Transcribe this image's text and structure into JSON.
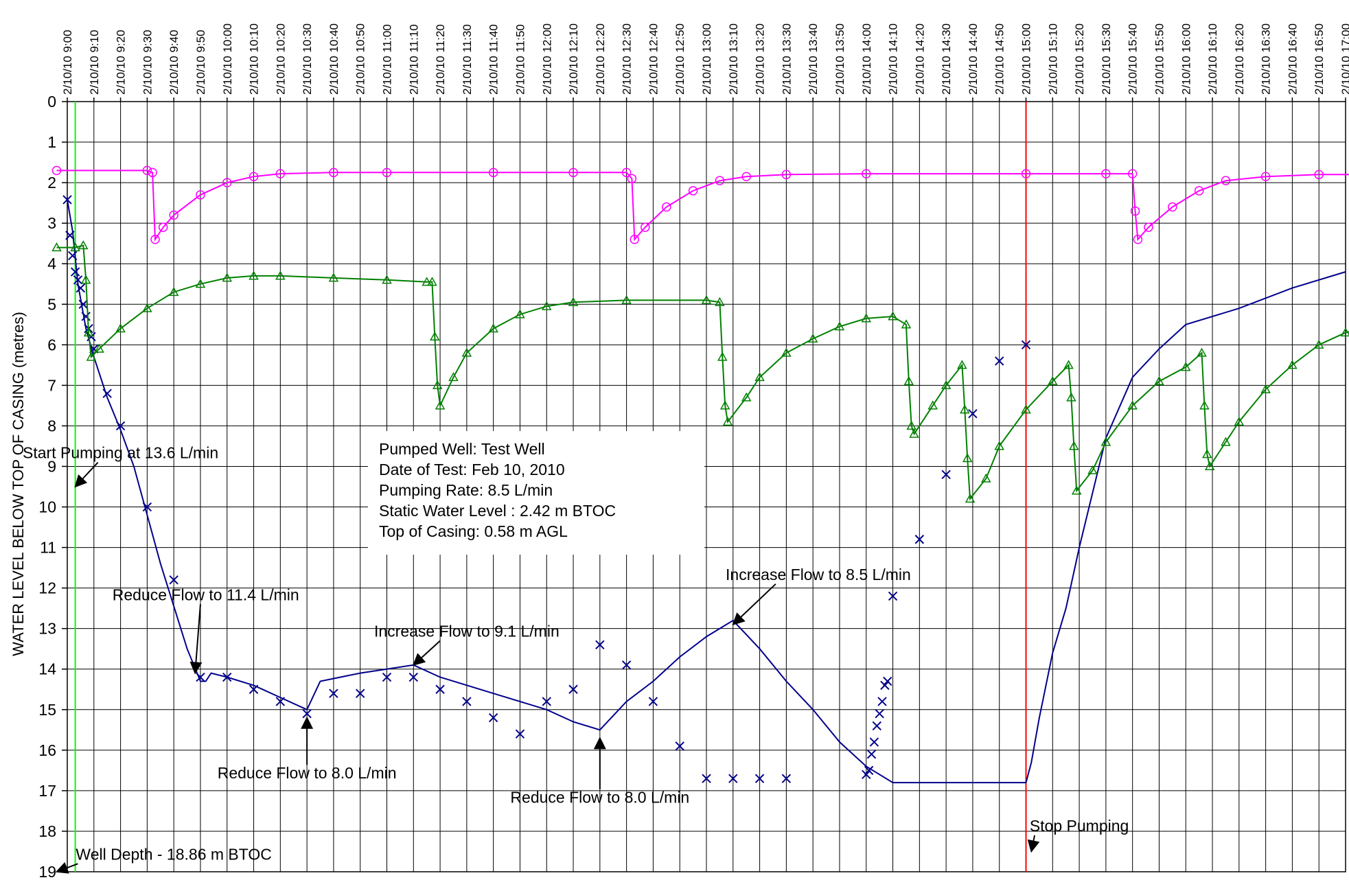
{
  "chart_data": {
    "type": "line",
    "title": "",
    "ylabel": "WATER LEVEL BELOW TOP OF CASING (metres)",
    "xlabel": "",
    "ylim": [
      0,
      19
    ],
    "y_inverted": true,
    "yticks": [
      "0",
      "1",
      "2",
      "3",
      "4",
      "5",
      "6",
      "7",
      "8",
      "9",
      "10",
      "11",
      "12",
      "13",
      "14",
      "15",
      "16",
      "17",
      "18",
      "19"
    ],
    "xlim": [
      "2/10/10 9:00",
      "2/10/10 17:00"
    ],
    "xticks": [
      "2/10/10 9:00",
      "2/10/10 9:10",
      "2/10/10 9:20",
      "2/10/10 9:30",
      "2/10/10 9:40",
      "2/10/10 9:50",
      "2/10/10 10:00",
      "2/10/10 10:10",
      "2/10/10 10:20",
      "2/10/10 10:30",
      "2/10/10 10:40",
      "2/10/10 10:50",
      "2/10/10 11:00",
      "2/10/10 11:10",
      "2/10/10 11:20",
      "2/10/10 11:30",
      "2/10/10 11:40",
      "2/10/10 11:50",
      "2/10/10 12:00",
      "2/10/10 12:10",
      "2/10/10 12:20",
      "2/10/10 12:30",
      "2/10/10 12:40",
      "2/10/10 12:50",
      "2/10/10 13:00",
      "2/10/10 13:10",
      "2/10/10 13:20",
      "2/10/10 13:30",
      "2/10/10 13:40",
      "2/10/10 13:50",
      "2/10/10 14:00",
      "2/10/10 14:10",
      "2/10/10 14:20",
      "2/10/10 14:30",
      "2/10/10 14:40",
      "2/10/10 14:50",
      "2/10/10 15:00",
      "2/10/10 15:10",
      "2/10/10 15:20",
      "2/10/10 15:30",
      "2/10/10 15:40",
      "2/10/10 15:50",
      "2/10/10 16:00",
      "2/10/10 16:10",
      "2/10/10 16:20",
      "2/10/10 16:30",
      "2/10/10 16:40",
      "2/10/10 16:50",
      "2/10/10 17:00"
    ],
    "grid": true,
    "legend": "none",
    "series": [
      {
        "color": "#00008B",
        "style": "line",
        "points": [
          [
            "2/10/10 9:00",
            "2.42"
          ],
          [
            "2/10/10 9:02",
            "3.2"
          ],
          [
            "2/10/10 9:04",
            "4.5"
          ],
          [
            "2/10/10 9:07",
            "5.6"
          ],
          [
            "2/10/10 9:10",
            "6.3"
          ],
          [
            "2/10/10 9:15",
            "7.3"
          ],
          [
            "2/10/10 9:20",
            "8.1"
          ],
          [
            "2/10/10 9:25",
            "9"
          ],
          [
            "2/10/10 9:35",
            "11.4"
          ],
          [
            "2/10/10 9:45",
            "13.5"
          ],
          [
            "2/10/10 9:50",
            "14.3"
          ],
          [
            "2/10/10 9:52",
            "14.3"
          ],
          [
            "2/10/10 9:54",
            "14.1"
          ],
          [
            "2/10/10 10:00",
            "14.2"
          ],
          [
            "2/10/10 10:10",
            "14.4"
          ],
          [
            "2/10/10 10:20",
            "14.7"
          ],
          [
            "2/10/10 10:30",
            "15"
          ],
          [
            "2/10/10 10:35",
            "14.3"
          ],
          [
            "2/10/10 10:50",
            "14.1"
          ],
          [
            "2/10/10 11:00",
            "14"
          ],
          [
            "2/10/10 11:10",
            "13.9"
          ],
          [
            "2/10/10 11:20",
            "14.2"
          ],
          [
            "2/10/10 11:40",
            "14.6"
          ],
          [
            "2/10/10 12:00",
            "15"
          ],
          [
            "2/10/10 12:10",
            "15.3"
          ],
          [
            "2/10/10 12:20",
            "15.5"
          ],
          [
            "2/10/10 12:30",
            "14.8"
          ],
          [
            "2/10/10 12:40",
            "14.3"
          ],
          [
            "2/10/10 12:50",
            "13.7"
          ],
          [
            "2/10/10 13:00",
            "13.2"
          ],
          [
            "2/10/10 13:10",
            "12.8"
          ],
          [
            "2/10/10 13:20",
            "13.5"
          ],
          [
            "2/10/10 13:30",
            "14.3"
          ],
          [
            "2/10/10 13:40",
            "15"
          ],
          [
            "2/10/10 13:50",
            "15.8"
          ],
          [
            "2/10/10 14:00",
            "16.4"
          ],
          [
            "2/10/10 14:10",
            "16.8"
          ],
          [
            "2/10/10 14:20",
            "16.8"
          ],
          [
            "2/10/10 15:00",
            "16.8"
          ],
          [
            "2/10/10 15:02",
            "16.3"
          ],
          [
            "2/10/10 15:05",
            "15.2"
          ],
          [
            "2/10/10 15:10",
            "13.6"
          ],
          [
            "2/10/10 15:15",
            "12.5"
          ],
          [
            "2/10/10 15:20",
            "11"
          ],
          [
            "2/10/10 15:30",
            "8.3"
          ],
          [
            "2/10/10 15:40",
            "6.8"
          ],
          [
            "2/10/10 15:50",
            "6.1"
          ],
          [
            "2/10/10 16:00",
            "5.5"
          ],
          [
            "2/10/10 16:20",
            "5.1"
          ],
          [
            "2/10/10 16:40",
            "4.6"
          ],
          [
            "2/10/10 17:00",
            "4.2"
          ]
        ]
      },
      {
        "color": "#00008B",
        "style": "markers",
        "marker": "x",
        "points": [
          [
            "2/10/10 9:00",
            "2.42"
          ],
          [
            "2/10/10 9:01",
            "3.3"
          ],
          [
            "2/10/10 9:02",
            "3.8"
          ],
          [
            "2/10/10 9:03",
            "4.2"
          ],
          [
            "2/10/10 9:04",
            "4.4"
          ],
          [
            "2/10/10 9:05",
            "4.6"
          ],
          [
            "2/10/10 9:06",
            "5"
          ],
          [
            "2/10/10 9:07",
            "5.3"
          ],
          [
            "2/10/10 9:08",
            "5.6"
          ],
          [
            "2/10/10 9:09",
            "5.8"
          ],
          [
            "2/10/10 9:10",
            "6.1"
          ],
          [
            "2/10/10 9:15",
            "7.2"
          ],
          [
            "2/10/10 9:20",
            "8"
          ],
          [
            "2/10/10 9:30",
            "10"
          ],
          [
            "2/10/10 9:40",
            "11.8"
          ],
          [
            "2/10/10 9:50",
            "14.2"
          ],
          [
            "2/10/10 10:00",
            "14.2"
          ],
          [
            "2/10/10 10:10",
            "14.5"
          ],
          [
            "2/10/10 10:20",
            "14.8"
          ],
          [
            "2/10/10 10:30",
            "15.1"
          ],
          [
            "2/10/10 10:40",
            "14.6"
          ],
          [
            "2/10/10 10:50",
            "14.6"
          ],
          [
            "2/10/10 11:00",
            "14.2"
          ],
          [
            "2/10/10 11:10",
            "14.2"
          ],
          [
            "2/10/10 11:20",
            "14.5"
          ],
          [
            "2/10/10 11:30",
            "14.8"
          ],
          [
            "2/10/10 11:40",
            "15.2"
          ],
          [
            "2/10/10 11:50",
            "15.6"
          ],
          [
            "2/10/10 12:00",
            "14.8"
          ],
          [
            "2/10/10 12:10",
            "14.5"
          ],
          [
            "2/10/10 12:20",
            "13.4"
          ],
          [
            "2/10/10 12:30",
            "13.9"
          ],
          [
            "2/10/10 12:40",
            "14.8"
          ],
          [
            "2/10/10 12:50",
            "15.9"
          ],
          [
            "2/10/10 13:00",
            "16.7"
          ],
          [
            "2/10/10 13:10",
            "16.7"
          ],
          [
            "2/10/10 13:20",
            "16.7"
          ],
          [
            "2/10/10 13:30",
            "16.7"
          ],
          [
            "2/10/10 14:00",
            "16.6"
          ],
          [
            "2/10/10 14:01",
            "16.5"
          ],
          [
            "2/10/10 14:02",
            "16.1"
          ],
          [
            "2/10/10 14:03",
            "15.8"
          ],
          [
            "2/10/10 14:04",
            "15.4"
          ],
          [
            "2/10/10 14:05",
            "15.1"
          ],
          [
            "2/10/10 14:06",
            "14.8"
          ],
          [
            "2/10/10 14:07",
            "14.4"
          ],
          [
            "2/10/10 14:08",
            "14.3"
          ],
          [
            "2/10/10 14:10",
            "12.2"
          ],
          [
            "2/10/10 14:20",
            "10.8"
          ],
          [
            "2/10/10 14:30",
            "9.2"
          ],
          [
            "2/10/10 14:40",
            "7.7"
          ],
          [
            "2/10/10 14:50",
            "6.4"
          ],
          [
            "2/10/10 15:00",
            "6"
          ]
        ]
      },
      {
        "color": "#008000",
        "style": "line+markers",
        "marker": "triangle",
        "points": [
          [
            "2/10/10 8:56",
            "3.6"
          ],
          [
            "2/10/10 9:03",
            "3.6"
          ],
          [
            "2/10/10 9:06",
            "3.55"
          ],
          [
            "2/10/10 9:07",
            "4.4"
          ],
          [
            "2/10/10 9:08",
            "5.7"
          ],
          [
            "2/10/10 9:09",
            "6.3"
          ],
          [
            "2/10/10 9:12",
            "6.1"
          ],
          [
            "2/10/10 9:20",
            "5.6"
          ],
          [
            "2/10/10 9:30",
            "5.1"
          ],
          [
            "2/10/10 9:40",
            "4.7"
          ],
          [
            "2/10/10 9:50",
            "4.5"
          ],
          [
            "2/10/10 10:00",
            "4.35"
          ],
          [
            "2/10/10 10:10",
            "4.3"
          ],
          [
            "2/10/10 10:20",
            "4.3"
          ],
          [
            "2/10/10 10:40",
            "4.35"
          ],
          [
            "2/10/10 11:00",
            "4.4"
          ],
          [
            "2/10/10 11:15",
            "4.45"
          ],
          [
            "2/10/10 11:17",
            "4.45"
          ],
          [
            "2/10/10 11:18",
            "5.8"
          ],
          [
            "2/10/10 11:19",
            "7"
          ],
          [
            "2/10/10 11:20",
            "7.5"
          ],
          [
            "2/10/10 11:25",
            "6.8"
          ],
          [
            "2/10/10 11:30",
            "6.2"
          ],
          [
            "2/10/10 11:40",
            "5.6"
          ],
          [
            "2/10/10 11:50",
            "5.25"
          ],
          [
            "2/10/10 12:00",
            "5.05"
          ],
          [
            "2/10/10 12:10",
            "4.95"
          ],
          [
            "2/10/10 12:30",
            "4.9"
          ],
          [
            "2/10/10 13:00",
            "4.9"
          ],
          [
            "2/10/10 13:05",
            "4.95"
          ],
          [
            "2/10/10 13:06",
            "6.3"
          ],
          [
            "2/10/10 13:07",
            "7.5"
          ],
          [
            "2/10/10 13:08",
            "7.9"
          ],
          [
            "2/10/10 13:15",
            "7.3"
          ],
          [
            "2/10/10 13:20",
            "6.8"
          ],
          [
            "2/10/10 13:30",
            "6.2"
          ],
          [
            "2/10/10 13:40",
            "5.85"
          ],
          [
            "2/10/10 13:50",
            "5.55"
          ],
          [
            "2/10/10 14:00",
            "5.35"
          ],
          [
            "2/10/10 14:10",
            "5.3"
          ],
          [
            "2/10/10 14:15",
            "5.5"
          ],
          [
            "2/10/10 14:16",
            "6.9"
          ],
          [
            "2/10/10 14:17",
            "8"
          ],
          [
            "2/10/10 14:18",
            "8.2"
          ],
          [
            "2/10/10 14:25",
            "7.5"
          ],
          [
            "2/10/10 14:30",
            "7"
          ],
          [
            "2/10/10 14:36",
            "6.5"
          ],
          [
            "2/10/10 14:37",
            "7.6"
          ],
          [
            "2/10/10 14:38",
            "8.8"
          ],
          [
            "2/10/10 14:39",
            "9.8"
          ],
          [
            "2/10/10 14:45",
            "9.3"
          ],
          [
            "2/10/10 14:50",
            "8.5"
          ],
          [
            "2/10/10 15:00",
            "7.6"
          ],
          [
            "2/10/10 15:10",
            "6.9"
          ],
          [
            "2/10/10 15:16",
            "6.5"
          ],
          [
            "2/10/10 15:17",
            "7.3"
          ],
          [
            "2/10/10 15:18",
            "8.5"
          ],
          [
            "2/10/10 15:19",
            "9.6"
          ],
          [
            "2/10/10 15:25",
            "9.1"
          ],
          [
            "2/10/10 15:30",
            "8.4"
          ],
          [
            "2/10/10 15:40",
            "7.5"
          ],
          [
            "2/10/10 15:50",
            "6.9"
          ],
          [
            "2/10/10 16:00",
            "6.55"
          ],
          [
            "2/10/10 16:06",
            "6.2"
          ],
          [
            "2/10/10 16:07",
            "7.5"
          ],
          [
            "2/10/10 16:08",
            "8.7"
          ],
          [
            "2/10/10 16:09",
            "9"
          ],
          [
            "2/10/10 16:15",
            "8.4"
          ],
          [
            "2/10/10 16:20",
            "7.9"
          ],
          [
            "2/10/10 16:30",
            "7.1"
          ],
          [
            "2/10/10 16:40",
            "6.5"
          ],
          [
            "2/10/10 16:50",
            "6"
          ],
          [
            "2/10/10 17:00",
            "5.7"
          ],
          [
            "2/10/10 17:03",
            "5.65"
          ]
        ]
      },
      {
        "color": "#FF00FF",
        "style": "line+markers",
        "marker": "circle",
        "points": [
          [
            "2/10/10 8:56",
            "1.7"
          ],
          [
            "2/10/10 9:30",
            "1.7"
          ],
          [
            "2/10/10 9:32",
            "1.75"
          ],
          [
            "2/10/10 9:33",
            "3.4"
          ],
          [
            "2/10/10 9:36",
            "3.1"
          ],
          [
            "2/10/10 9:40",
            "2.8"
          ],
          [
            "2/10/10 9:50",
            "2.3"
          ],
          [
            "2/10/10 10:00",
            "2.0"
          ],
          [
            "2/10/10 10:10",
            "1.85"
          ],
          [
            "2/10/10 10:20",
            "1.78"
          ],
          [
            "2/10/10 10:40",
            "1.75"
          ],
          [
            "2/10/10 11:00",
            "1.75"
          ],
          [
            "2/10/10 11:40",
            "1.75"
          ],
          [
            "2/10/10 12:10",
            "1.75"
          ],
          [
            "2/10/10 12:30",
            "1.75"
          ],
          [
            "2/10/10 12:32",
            "1.9"
          ],
          [
            "2/10/10 12:33",
            "3.4"
          ],
          [
            "2/10/10 12:37",
            "3.1"
          ],
          [
            "2/10/10 12:45",
            "2.6"
          ],
          [
            "2/10/10 12:55",
            "2.2"
          ],
          [
            "2/10/10 13:05",
            "1.95"
          ],
          [
            "2/10/10 13:15",
            "1.85"
          ],
          [
            "2/10/10 13:30",
            "1.8"
          ],
          [
            "2/10/10 14:00",
            "1.78"
          ],
          [
            "2/10/10 15:00",
            "1.78"
          ],
          [
            "2/10/10 15:30",
            "1.78"
          ],
          [
            "2/10/10 15:40",
            "1.78"
          ],
          [
            "2/10/10 15:41",
            "2.7"
          ],
          [
            "2/10/10 15:42",
            "3.4"
          ],
          [
            "2/10/10 15:46",
            "3.1"
          ],
          [
            "2/10/10 15:55",
            "2.6"
          ],
          [
            "2/10/10 16:05",
            "2.2"
          ],
          [
            "2/10/10 16:15",
            "1.95"
          ],
          [
            "2/10/10 16:30",
            "1.85"
          ],
          [
            "2/10/10 16:50",
            "1.8"
          ],
          [
            "2/10/10 17:03",
            "1.8"
          ]
        ]
      }
    ],
    "vertical_lines": [
      {
        "x": "2/10/10 9:03",
        "color": "#00FF00"
      },
      {
        "x": "2/10/10 15:00",
        "color": "#FF0000"
      }
    ],
    "annotations": [
      {
        "text": "Start Pumping at 13.6 L/min",
        "at": [
          "2/10/10 9:20",
          "8.8"
        ],
        "arrow_to": [
          "2/10/10 9:03",
          "9.5"
        ]
      },
      {
        "text": "Reduce Flow to 11.4 L/min",
        "at": [
          "2/10/10 9:52",
          "12.3"
        ],
        "arrow_to": [
          "2/10/10 9:48",
          "14.1"
        ]
      },
      {
        "text": "Reduce Flow to 8.0 L/min",
        "at": [
          "2/10/10 10:30",
          "16.7"
        ],
        "arrow_to": [
          "2/10/10 10:30",
          "15.2"
        ]
      },
      {
        "text": "Increase Flow to 9.1 L/min",
        "at": [
          "2/10/10 11:30",
          "13.2"
        ],
        "arrow_to": [
          "2/10/10 11:10",
          "13.9"
        ]
      },
      {
        "text": "Reduce Flow to 8.0 L/min",
        "at": [
          "2/10/10 12:20",
          "17.3"
        ],
        "arrow_to": [
          "2/10/10 12:20",
          "15.7"
        ]
      },
      {
        "text": "Increase Flow to 8.5 L/min",
        "at": [
          "2/10/10 13:42",
          "11.8"
        ],
        "arrow_to": [
          "2/10/10 13:10",
          "12.9"
        ]
      },
      {
        "text": "Stop Pumping",
        "at": [
          "2/10/10 15:20",
          "18.0"
        ],
        "arrow_to": [
          "2/10/10 15:02",
          "18.5"
        ]
      },
      {
        "text": "Well Depth - 18.86 m BTOC",
        "at": [
          "2/10/10 9:40",
          "18.7"
        ],
        "arrow_to": [
          "2/10/10 8:56",
          "19.0"
        ]
      }
    ],
    "info_box": [
      "Pumped Well: Test Well",
      "Date of Test: Feb 10, 2010",
      "Pumping Rate: 8.5 L/min",
      "Static Water Level : 2.42 m BTOC",
      "Top of Casing: 0.58 m AGL"
    ]
  }
}
